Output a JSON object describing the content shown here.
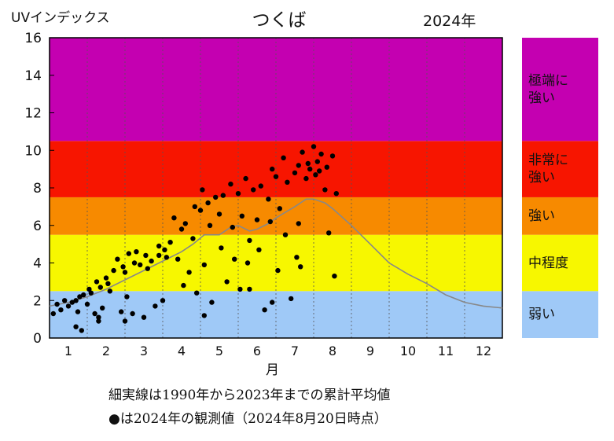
{
  "chart_data": {
    "type": "scatter",
    "title": "つくば",
    "year_label": "2024年",
    "ylabel": "UVインデックス",
    "xlabel": "月",
    "ylim": [
      0,
      16
    ],
    "xlim": [
      0.5,
      12.5
    ],
    "y_ticks": [
      "0",
      "2",
      "4",
      "6",
      "8",
      "10",
      "12",
      "14",
      "16"
    ],
    "x_ticks": [
      "1",
      "2",
      "3",
      "4",
      "5",
      "6",
      "7",
      "8",
      "9",
      "10",
      "11",
      "12"
    ],
    "grid": "vertical dotted lines at month boundaries",
    "bands": [
      {
        "label": "弱い",
        "from": 0,
        "to": 2.5,
        "color": "#9fc9f7"
      },
      {
        "label": "中程度",
        "from": 2.5,
        "to": 5.5,
        "color": "#f7f700"
      },
      {
        "label": "強い",
        "from": 5.5,
        "to": 7.5,
        "color": "#f78a00"
      },
      {
        "label": "非常に\n強い",
        "from": 7.5,
        "to": 10.5,
        "color": "#f71500"
      },
      {
        "label": "極端に\n強い",
        "from": 10.5,
        "to": 16,
        "color": "#c400b1"
      }
    ],
    "average_line": {
      "color": "#888888",
      "x": [
        0.5,
        1.0,
        1.5,
        2.0,
        2.5,
        3.0,
        3.5,
        4.0,
        4.3,
        4.6,
        5.0,
        5.3,
        5.5,
        5.8,
        6.0,
        6.3,
        6.5,
        7.0,
        7.3,
        7.5,
        7.8,
        8.0,
        8.5,
        9.0,
        9.5,
        10.0,
        10.5,
        11.0,
        11.5,
        12.0,
        12.5
      ],
      "y": [
        1.7,
        1.9,
        2.2,
        2.6,
        3.1,
        3.6,
        4.1,
        4.6,
        5.0,
        5.5,
        5.5,
        5.9,
        6.0,
        5.7,
        5.8,
        6.1,
        6.4,
        7.0,
        7.4,
        7.4,
        7.2,
        6.9,
        6.0,
        5.0,
        4.0,
        3.4,
        2.9,
        2.3,
        1.9,
        1.7,
        1.6
      ]
    },
    "points": {
      "color": "#000000",
      "x": [
        0.6,
        0.7,
        0.8,
        0.9,
        1.0,
        1.1,
        1.2,
        1.25,
        1.3,
        1.35,
        1.4,
        1.5,
        1.55,
        1.6,
        1.7,
        1.75,
        1.8,
        1.85,
        1.9,
        2.0,
        2.05,
        2.1,
        2.2,
        2.3,
        2.4,
        2.45,
        2.5,
        2.55,
        2.6,
        2.7,
        2.75,
        2.8,
        2.9,
        3.0,
        3.05,
        3.1,
        3.2,
        3.3,
        3.4,
        3.5,
        3.55,
        3.6,
        3.7,
        3.8,
        3.9,
        4.0,
        4.05,
        4.1,
        4.2,
        4.3,
        4.35,
        4.4,
        4.5,
        4.55,
        4.6,
        4.7,
        4.75,
        4.8,
        4.9,
        5.0,
        5.05,
        5.1,
        5.2,
        5.3,
        5.35,
        5.4,
        5.5,
        5.55,
        5.6,
        5.7,
        5.75,
        5.8,
        5.9,
        6.0,
        6.05,
        6.1,
        6.2,
        6.3,
        6.35,
        6.4,
        6.5,
        6.55,
        6.6,
        6.7,
        6.75,
        6.8,
        6.9,
        7.0,
        7.05,
        7.1,
        7.15,
        7.2,
        7.3,
        7.35,
        7.4,
        7.5,
        7.55,
        7.6,
        7.65,
        7.7,
        7.8,
        7.85,
        7.9,
        8.0,
        8.05,
        8.1,
        1.2,
        1.8,
        2.5,
        3.4,
        4.6,
        5.8,
        6.4,
        7.1
      ],
      "y": [
        1.3,
        1.8,
        1.5,
        2.0,
        1.7,
        1.9,
        0.6,
        1.4,
        2.2,
        0.4,
        2.3,
        1.8,
        2.6,
        2.4,
        1.3,
        3.0,
        0.9,
        2.7,
        1.6,
        3.2,
        2.9,
        2.5,
        3.6,
        4.2,
        1.4,
        3.8,
        3.5,
        2.2,
        4.5,
        1.3,
        4.0,
        4.6,
        3.9,
        1.1,
        4.4,
        3.7,
        4.1,
        1.7,
        4.9,
        2.0,
        4.7,
        4.3,
        5.1,
        6.4,
        4.2,
        5.8,
        2.8,
        6.1,
        3.5,
        5.3,
        7.0,
        2.4,
        6.8,
        7.9,
        3.9,
        7.2,
        6.0,
        1.9,
        7.5,
        6.6,
        4.8,
        7.6,
        3.0,
        8.2,
        5.9,
        4.2,
        7.7,
        2.6,
        6.5,
        8.5,
        4.0,
        5.2,
        7.9,
        6.3,
        4.7,
        8.1,
        1.5,
        7.4,
        6.2,
        9.0,
        8.6,
        3.6,
        6.9,
        9.6,
        5.5,
        8.3,
        2.1,
        8.8,
        4.3,
        9.2,
        3.8,
        9.9,
        8.5,
        9.3,
        9.0,
        10.2,
        8.7,
        9.4,
        8.9,
        9.8,
        7.9,
        9.1,
        5.6,
        9.7,
        3.3,
        7.7,
        2.0,
        1.1,
        0.9,
        4.4,
        1.2,
        2.6,
        1.9,
        6.1
      ]
    }
  },
  "notes": [
    "細実線は1990年から2023年までの累計平均値",
    "●は2024年の観測値（2024年8月20日時点）"
  ]
}
